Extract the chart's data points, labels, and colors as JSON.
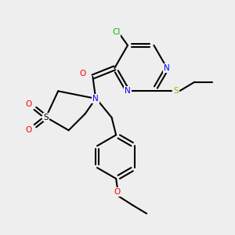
{
  "bg_color": "#eeeeee",
  "bond_color": "#000000",
  "bond_width": 1.5,
  "atom_colors": {
    "N": "#0000ff",
    "O": "#ff0000",
    "S_yellow": "#aaaa00",
    "S_black": "#000000",
    "Cl": "#00bb00",
    "C": "#000000"
  },
  "font_size": 7.5
}
